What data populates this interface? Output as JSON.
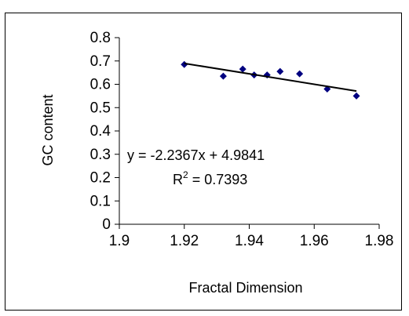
{
  "chart_data": {
    "type": "scatter",
    "title": "",
    "xlabel": "Fractal Dimension",
    "ylabel": "GC content",
    "xlim": [
      1.9,
      1.98
    ],
    "ylim": [
      0,
      0.8
    ],
    "x_ticks": [
      1.9,
      1.92,
      1.94,
      1.96,
      1.98
    ],
    "y_ticks": [
      0,
      0.1,
      0.2,
      0.3,
      0.4,
      0.5,
      0.6,
      0.7,
      0.8
    ],
    "grid": false,
    "legend": "none",
    "series": [
      {
        "x": [
          1.92,
          1.932,
          1.938,
          1.9415,
          1.9455,
          1.9495,
          1.9555,
          1.964,
          1.973
        ],
        "y": [
          0.685,
          0.635,
          0.665,
          0.64,
          0.64,
          0.655,
          0.645,
          0.58,
          0.55
        ],
        "color": "#000080"
      }
    ],
    "trendline": {
      "slope": -2.2367,
      "intercept": 4.9841,
      "x_range": [
        1.92,
        1.973
      ],
      "color": "#000000"
    },
    "annotations": {
      "equation": "y = -2.2367x + 4.9841",
      "r2_prefix": "R",
      "r2_superscript": "2",
      "r2_value": " = 0.7393"
    }
  }
}
